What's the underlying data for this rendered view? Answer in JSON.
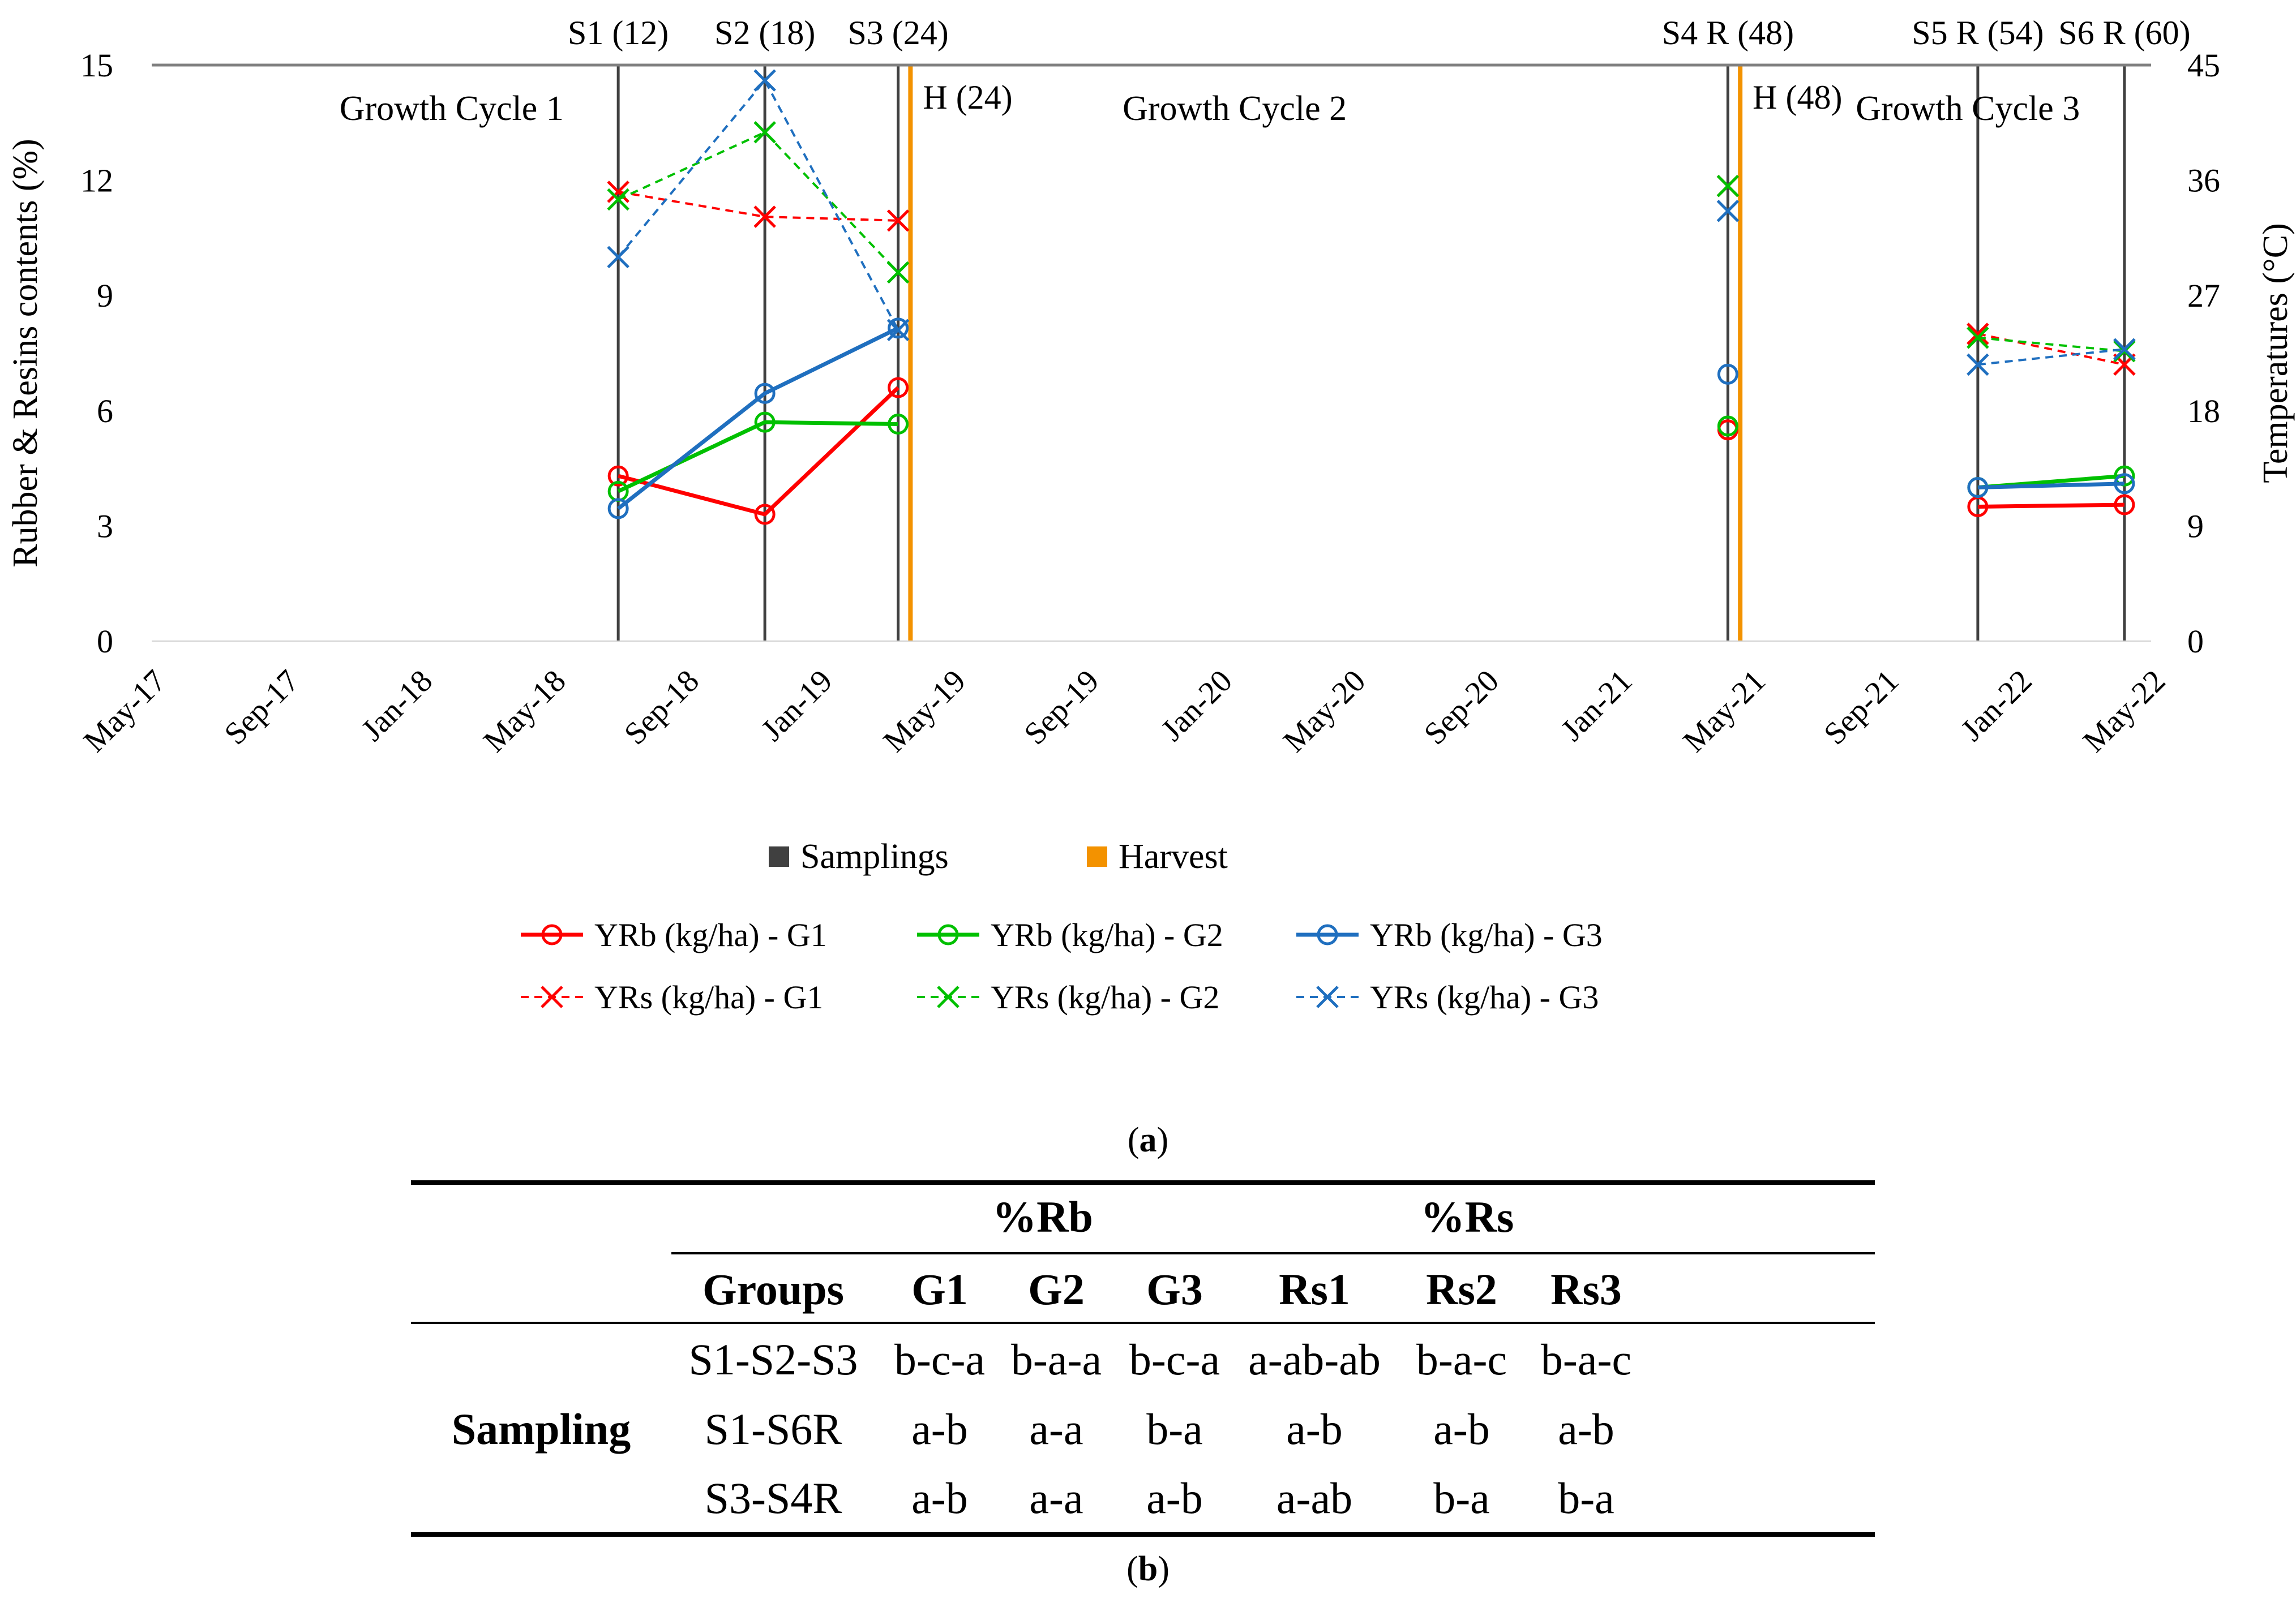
{
  "chart_data": {
    "type": "line",
    "ylabel_left": "Rubber & Resins contents (%)",
    "ylabel_right": "Temperatures (°C)",
    "ylim_left": [
      0,
      15
    ],
    "yticks_left": [
      "0",
      "3",
      "6",
      "9",
      "12",
      "15"
    ],
    "ylim_right": [
      0,
      45
    ],
    "yticks_right": [
      "0",
      "9",
      "18",
      "27",
      "36",
      "45"
    ],
    "x_tick_labels": [
      "May-17",
      "Sep-17",
      "Jan-18",
      "May-18",
      "Sep-18",
      "Jan-19",
      "May-19",
      "Sep-19",
      "Jan-20",
      "May-20",
      "Sep-20",
      "Jan-21",
      "May-21",
      "Sep-21",
      "Jan-22",
      "May-22"
    ],
    "x_range_months": [
      0,
      60
    ],
    "cycle_labels": [
      {
        "text": "Growth Cycle 1",
        "month": 9
      },
      {
        "text": "Growth Cycle 2",
        "month": 32.5
      },
      {
        "text": "Growth Cycle 3",
        "month": 54.5
      }
    ],
    "samplings": [
      {
        "label": "S1 (12)",
        "month": 14
      },
      {
        "label": "S2 (18)",
        "month": 18.4
      },
      {
        "label": "S3 (24)",
        "month": 22.4
      },
      {
        "label": "S4 R (48)",
        "month": 47.3
      },
      {
        "label": "S5 R (54)",
        "month": 54.8
      },
      {
        "label": "S6 R (60)",
        "month": 59.2
      }
    ],
    "harvests": [
      {
        "label": "H (24)",
        "month": 22.6
      },
      {
        "label": "H (48)",
        "month": 47.5
      }
    ],
    "series": [
      {
        "name": "YRb (kg/ha) - G1",
        "color": "#FF0000",
        "dashed": false,
        "marker": "circle",
        "points": [
          [
            14,
            4.3
          ],
          [
            18.4,
            3.3
          ],
          [
            22.4,
            6.6
          ],
          null,
          [
            47.3,
            5.5
          ],
          null,
          [
            54.8,
            3.5
          ],
          [
            59.2,
            3.55
          ]
        ]
      },
      {
        "name": "YRb (kg/ha) - G2",
        "color": "#00C000",
        "dashed": false,
        "marker": "circle",
        "points": [
          [
            14,
            3.9
          ],
          [
            18.4,
            5.7
          ],
          [
            22.4,
            5.65
          ],
          null,
          [
            47.3,
            5.6
          ],
          null,
          [
            54.8,
            4.0
          ],
          [
            59.2,
            4.3
          ]
        ]
      },
      {
        "name": "YRb (kg/ha) - G3",
        "color": "#1F6FBF",
        "dashed": false,
        "marker": "circle",
        "points": [
          [
            14,
            3.45
          ],
          [
            18.4,
            6.45
          ],
          [
            22.4,
            8.15
          ],
          null,
          [
            47.3,
            6.95
          ],
          null,
          [
            54.8,
            4.0
          ],
          [
            59.2,
            4.1
          ]
        ]
      },
      {
        "name": "YRs (kg/ha) - G1",
        "color": "#FF0000",
        "dashed": true,
        "marker": "x",
        "points": [
          [
            14,
            11.7
          ],
          [
            18.4,
            11.05
          ],
          [
            22.4,
            10.95
          ],
          null,
          [
            47.3,
            11.85
          ],
          null,
          [
            54.8,
            8.0
          ],
          [
            59.2,
            7.2
          ]
        ]
      },
      {
        "name": "YRs (kg/ha) - G2",
        "color": "#00C000",
        "dashed": true,
        "marker": "x",
        "points": [
          [
            14,
            11.5
          ],
          [
            18.4,
            13.25
          ],
          [
            22.4,
            9.6
          ],
          null,
          [
            47.3,
            11.85
          ],
          null,
          [
            54.8,
            7.9
          ],
          [
            59.2,
            7.55
          ]
        ]
      },
      {
        "name": "YRs (kg/ha) - G3",
        "color": "#1F6FBF",
        "dashed": true,
        "marker": "x",
        "points": [
          [
            14,
            10.0
          ],
          [
            18.4,
            14.6
          ],
          [
            22.4,
            8.1
          ],
          null,
          [
            47.3,
            11.2
          ],
          null,
          [
            54.8,
            7.2
          ],
          [
            59.2,
            7.6
          ]
        ]
      }
    ],
    "legend": {
      "samplings_label": "Samplings",
      "samplings_color": "#404040",
      "harvest_label": "Harvest",
      "harvest_color": "#F39200"
    }
  },
  "captions": {
    "a_open": "(",
    "a": "a",
    "a_close": ")",
    "b_open": "(",
    "b": "b",
    "b_close": ")"
  },
  "table": {
    "group_rb": "%Rb",
    "group_rs": "%Rs",
    "headers": [
      "Groups",
      "G1",
      "G2",
      "G3",
      "Rs1",
      "Rs2",
      "Rs3"
    ],
    "row_header": "Sampling",
    "rows": [
      [
        "S1-S2-S3",
        "b-c-a",
        "b-a-a",
        "b-c-a",
        "a-ab-ab",
        "b-a-c",
        "b-a-c"
      ],
      [
        "S1-S6R",
        "a-b",
        "a-a",
        "b-a",
        "a-b",
        "a-b",
        "a-b"
      ],
      [
        "S3-S4R",
        "a-b",
        "a-a",
        "a-b",
        "a-ab",
        "b-a",
        "b-a"
      ]
    ]
  }
}
